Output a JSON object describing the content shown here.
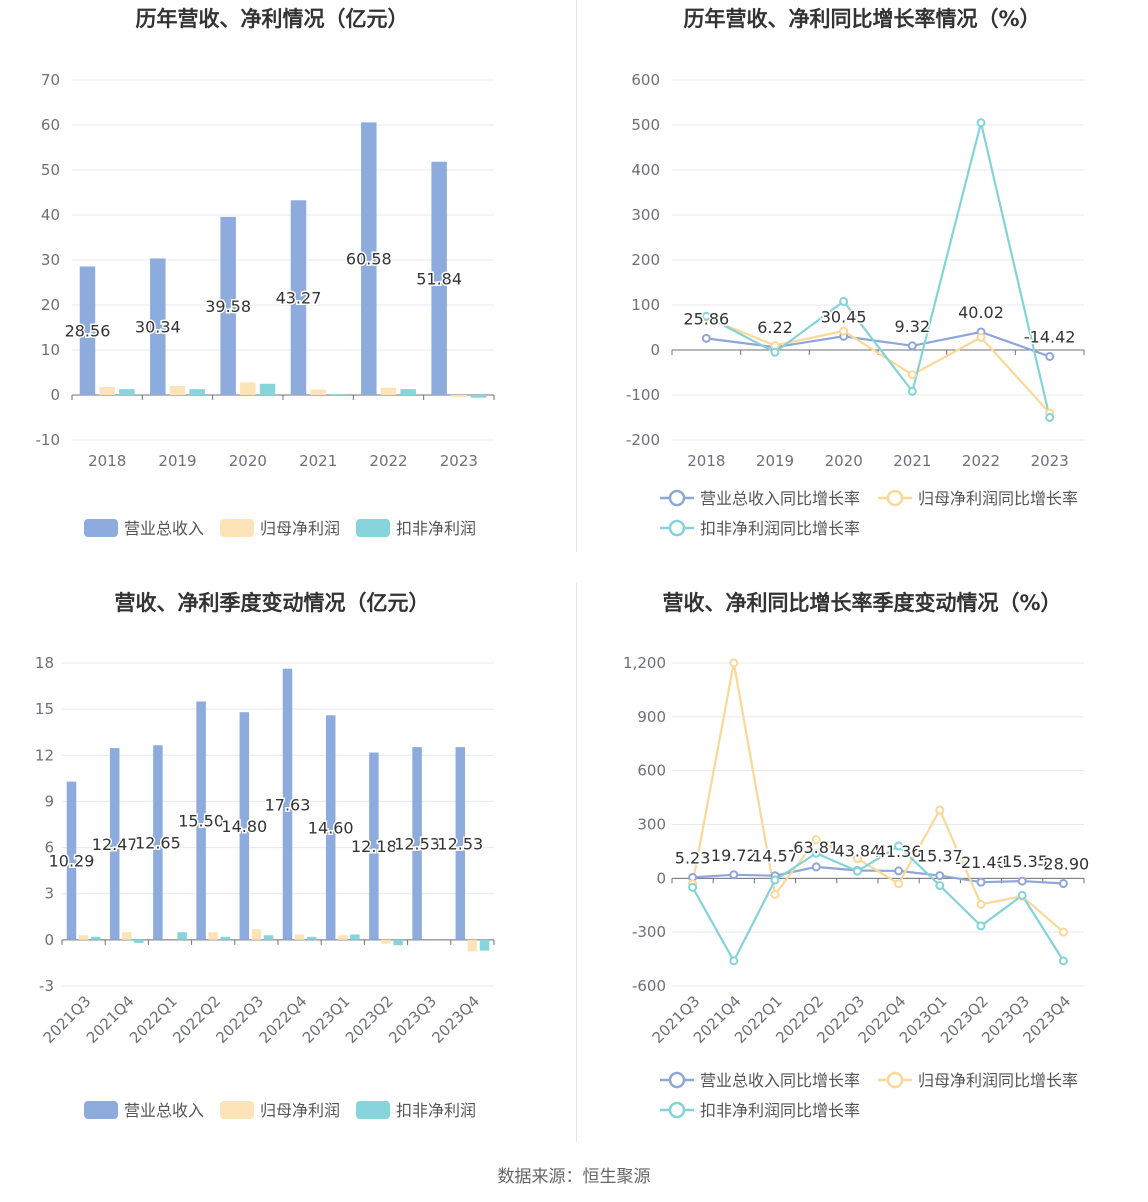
{
  "colors": {
    "revenue": "#8dabdc",
    "parent_profit": "#fde4b8",
    "deducted_profit": "#87d4dc",
    "revenue_line": "#8fa6d8",
    "parent_line": "#fbd897",
    "deducted_line": "#84d3da",
    "grid": "#e6e8f2",
    "axis_text": "#6e7079",
    "title": "#333333"
  },
  "source": "数据来源：恒生聚源",
  "chart_data": [
    {
      "type": "bar",
      "title": "历年营收、净利情况（亿元）",
      "categories": [
        "2018",
        "2019",
        "2020",
        "2021",
        "2022",
        "2023"
      ],
      "ylim": [
        -10,
        70
      ],
      "yticks": [
        "-10",
        "0",
        "10",
        "20",
        "30",
        "40",
        "50",
        "60",
        "70"
      ],
      "series": [
        {
          "name": "营业总收入",
          "values": [
            28.56,
            30.34,
            39.58,
            43.27,
            60.58,
            51.84
          ],
          "labels": [
            "28.56",
            "30.34",
            "39.58",
            "43.27",
            "60.58",
            "51.84"
          ]
        },
        {
          "name": "归母净利润",
          "values": [
            1.8,
            2.0,
            2.8,
            1.2,
            1.6,
            -0.5
          ]
        },
        {
          "name": "扣非净利润",
          "values": [
            1.3,
            1.3,
            2.5,
            0.2,
            1.3,
            -0.6
          ]
        }
      ],
      "grid": true,
      "legend": "bottom"
    },
    {
      "type": "line",
      "title": "历年营收、净利同比增长率情况（%）",
      "categories": [
        "2018",
        "2019",
        "2020",
        "2021",
        "2022",
        "2023"
      ],
      "ylim": [
        -200,
        600
      ],
      "yticks": [
        "-200",
        "-100",
        "0",
        "100",
        "200",
        "300",
        "400",
        "500",
        "600"
      ],
      "series": [
        {
          "name": "营业总收入同比增长率",
          "values": [
            25.86,
            6.22,
            30.45,
            9.32,
            40.02,
            -14.42
          ],
          "labels": [
            "25.86",
            "6.22",
            "30.45",
            "9.32",
            "40.02",
            "-14.42"
          ]
        },
        {
          "name": "归母净利润同比增长率",
          "values": [
            72,
            10,
            42,
            -55,
            28,
            -140
          ]
        },
        {
          "name": "扣非净利润同比增长率",
          "values": [
            75,
            -5,
            108,
            -92,
            505,
            -150
          ]
        }
      ],
      "grid": true,
      "legend": "bottom"
    },
    {
      "type": "bar",
      "title": "营收、净利季度变动情况（亿元）",
      "categories": [
        "2021Q3",
        "2021Q4",
        "2022Q1",
        "2022Q2",
        "2022Q3",
        "2022Q4",
        "2023Q1",
        "2023Q2",
        "2023Q3",
        "2023Q4"
      ],
      "ylim": [
        -3,
        18
      ],
      "yticks": [
        "-3",
        "0",
        "3",
        "6",
        "9",
        "12",
        "15",
        "18"
      ],
      "series": [
        {
          "name": "营业总收入",
          "values": [
            10.29,
            12.47,
            12.65,
            15.5,
            14.8,
            17.63,
            14.6,
            12.18,
            12.53,
            12.53
          ],
          "labels": [
            "10.29",
            "12.47",
            "12.65",
            "15.50",
            "14.80",
            "17.63",
            "14.60",
            "12.18",
            "12.53",
            "12.53"
          ]
        },
        {
          "name": "归母净利润",
          "values": [
            0.3,
            0.5,
            0.0,
            0.5,
            0.7,
            0.35,
            0.3,
            -0.25,
            0.0,
            -0.75
          ]
        },
        {
          "name": "扣非净利润",
          "values": [
            0.2,
            -0.2,
            0.5,
            0.2,
            0.3,
            0.2,
            0.35,
            -0.35,
            0.0,
            -0.7
          ]
        }
      ],
      "grid": true,
      "legend": "bottom"
    },
    {
      "type": "line",
      "title": "营收、净利同比增长率季度变动情况（%）",
      "categories": [
        "2021Q3",
        "2021Q4",
        "2022Q1",
        "2022Q2",
        "2022Q3",
        "2022Q4",
        "2023Q1",
        "2023Q2",
        "2023Q3",
        "2023Q4"
      ],
      "ylim": [
        -600,
        1200
      ],
      "yticks": [
        "-600",
        "-300",
        "0",
        "300",
        "600",
        "900",
        "1,200"
      ],
      "series": [
        {
          "name": "营业总收入同比增长率",
          "values": [
            5.23,
            19.72,
            14.57,
            63.81,
            43.84,
            41.36,
            15.37,
            -21.4,
            -15.35,
            -28.9
          ],
          "labels": [
            "5.23",
            "19.72",
            "14.57",
            "63.81",
            "43.84",
            "41.36",
            "15.37",
            "-21.40",
            "-15.35",
            "-28.90"
          ]
        },
        {
          "name": "归母净利润同比增长率",
          "values": [
            -30,
            1200,
            -90,
            215,
            110,
            -30,
            380,
            -145,
            -100,
            -300
          ]
        },
        {
          "name": "扣非净利润同比增长率",
          "values": [
            -50,
            -460,
            -10,
            140,
            40,
            180,
            -40,
            -265,
            -95,
            -460
          ]
        }
      ],
      "grid": true,
      "legend": "bottom"
    }
  ]
}
